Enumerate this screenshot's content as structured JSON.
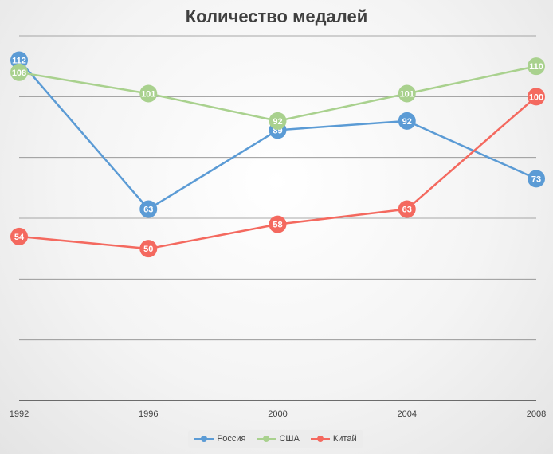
{
  "chart_data": {
    "type": "line",
    "title": "Количество медалей",
    "categories": [
      "1992",
      "1996",
      "2000",
      "2004",
      "2008"
    ],
    "series": [
      {
        "name": "Россия",
        "color": "#5b9bd5",
        "values": [
          112,
          63,
          89,
          92,
          73
        ]
      },
      {
        "name": "США",
        "color": "#a9d18e",
        "values": [
          108,
          101,
          92,
          101,
          110
        ]
      },
      {
        "name": "Китай",
        "color": "#f4695f",
        "values": [
          54,
          50,
          58,
          63,
          100
        ]
      }
    ],
    "ylim": [
      0,
      120
    ],
    "grid": true,
    "y_tick_labels_visible": false,
    "data_labels": true,
    "legend_position": "bottom"
  }
}
